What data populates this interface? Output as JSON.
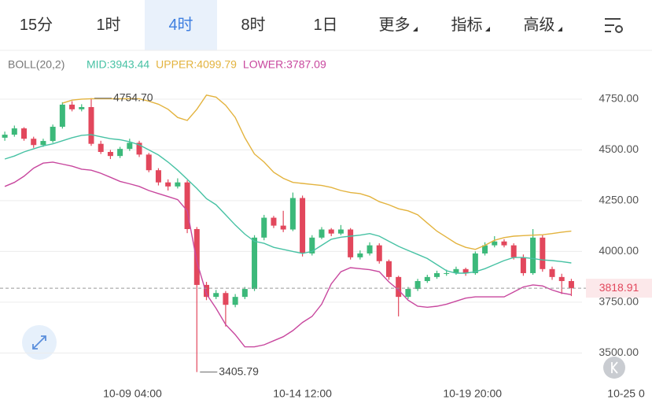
{
  "tabs": [
    "15分",
    "1时",
    "4时",
    "8时",
    "1日",
    "更多",
    "指标",
    "高级"
  ],
  "chart_data": {
    "type": "candlestick",
    "indicator": "BOLL(20,2)",
    "open": [
      4560,
      4575,
      4606,
      4555,
      4524,
      4544,
      4614,
      4723,
      4700,
      4711,
      4530,
      4490,
      4470,
      4505,
      4535,
      4477,
      4400,
      4340,
      4320,
      4340,
      4110,
      3835,
      3776,
      3795,
      3737,
      3776,
      3815,
      4068,
      4166,
      4127,
      4108,
      4263,
      3990,
      4068,
      4108,
      4088,
      4108,
      3971,
      3990,
      4030,
      3952,
      3874,
      3776,
      3815,
      3854,
      3874,
      3893,
      3893,
      3913,
      3893,
      3990,
      4030,
      4049,
      4030,
      3971,
      3893,
      4068,
      3913,
      3874,
      3854
    ],
    "high": [
      4590,
      4620,
      4612,
      4565,
      4555,
      4625,
      4735,
      4740,
      4725,
      4754.7,
      4545,
      4500,
      4515,
      4555,
      4545,
      4485,
      4410,
      4355,
      4360,
      4350,
      4120,
      3850,
      3810,
      3805,
      3790,
      3825,
      4080,
      4180,
      4175,
      4200,
      4290,
      4275,
      4080,
      4120,
      4115,
      4130,
      4115,
      4005,
      4045,
      4040,
      3960,
      3880,
      3825,
      3865,
      3885,
      3905,
      3910,
      3925,
      3920,
      4000,
      4045,
      4075,
      4060,
      4040,
      3985,
      4110,
      4080,
      3925,
      3890,
      3865
    ],
    "low": [
      4545,
      4565,
      4545,
      4510,
      4515,
      4535,
      4605,
      4690,
      4690,
      4520,
      4480,
      4455,
      4460,
      4495,
      4465,
      4390,
      4325,
      4300,
      4310,
      4090,
      3405.79,
      3760,
      3765,
      3630,
      3725,
      3765,
      3805,
      4055,
      4115,
      4095,
      4100,
      3975,
      3980,
      4060,
      4075,
      4080,
      3960,
      3960,
      3980,
      3940,
      3860,
      3680,
      3765,
      3805,
      3845,
      3865,
      3880,
      3885,
      3880,
      3885,
      3980,
      4020,
      4020,
      3960,
      3880,
      3885,
      3900,
      3860,
      3790,
      3780
    ],
    "close": [
      4575,
      4606,
      4555,
      4524,
      4544,
      4614,
      4723,
      4700,
      4711,
      4530,
      4490,
      4470,
      4505,
      4535,
      4477,
      4400,
      4340,
      4320,
      4340,
      4110,
      3835,
      3776,
      3795,
      3737,
      3776,
      3815,
      4068,
      4166,
      4127,
      4108,
      4263,
      3990,
      4068,
      4108,
      4088,
      4108,
      3971,
      3990,
      4030,
      3952,
      3874,
      3776,
      3815,
      3854,
      3874,
      3893,
      3893,
      3913,
      3893,
      3990,
      4030,
      4049,
      4030,
      3971,
      3893,
      4068,
      3913,
      3874,
      3854,
      3818.91
    ],
    "up_color": "#3cb97a",
    "down_color": "#e2475c",
    "series": [
      {
        "name": "MID:3943.44",
        "color": "#47c2a4",
        "values": [
          4455,
          4470,
          4490,
          4505,
          4520,
          4530,
          4545,
          4560,
          4572,
          4575,
          4565,
          4555,
          4550,
          4540,
          4525,
          4500,
          4475,
          4440,
          4400,
          4355,
          4310,
          4260,
          4230,
          4180,
          4130,
          4085,
          4050,
          4040,
          4020,
          4010,
          4000,
          3990,
          4000,
          4030,
          4060,
          4070,
          4075,
          4080,
          4088,
          4075,
          4050,
          4025,
          4005,
          3985,
          3965,
          3935,
          3905,
          3893,
          3893,
          3900,
          3915,
          3935,
          3955,
          3970,
          3970,
          3965,
          3958,
          3955,
          3950,
          3943.44
        ]
      },
      {
        "name": "UPPER:4099.79",
        "color": "#e3b33e",
        "values": [
          null,
          null,
          null,
          null,
          null,
          null,
          4730,
          4745,
          4750,
          4752,
          4752,
          4752,
          4752,
          4752,
          4752,
          4740,
          4725,
          4700,
          4660,
          4645,
          4700,
          4770,
          4760,
          4720,
          4660,
          4560,
          4480,
          4440,
          4390,
          4360,
          4340,
          4335,
          4330,
          4325,
          4315,
          4300,
          4290,
          4285,
          4270,
          4245,
          4230,
          4210,
          4200,
          4180,
          4140,
          4100,
          4070,
          4040,
          4020,
          4010,
          4030,
          4055,
          4068,
          4075,
          4078,
          4080,
          4082,
          4088,
          4095,
          4099.79
        ]
      },
      {
        "name": "LOWER:3787.09",
        "color": "#c8479e",
        "values": [
          4320,
          4340,
          4370,
          4410,
          4435,
          4440,
          4430,
          4420,
          4405,
          4400,
          4385,
          4365,
          4345,
          4333,
          4320,
          4300,
          4285,
          4270,
          4255,
          4200,
          3950,
          3790,
          3720,
          3640,
          3590,
          3530,
          3530,
          3540,
          3560,
          3580,
          3610,
          3650,
          3680,
          3740,
          3840,
          3900,
          3920,
          3915,
          3910,
          3900,
          3850,
          3810,
          3760,
          3730,
          3725,
          3730,
          3740,
          3755,
          3770,
          3776,
          3776,
          3776,
          3776,
          3800,
          3825,
          3835,
          3830,
          3810,
          3795,
          3787.09
        ]
      }
    ],
    "ylim": [
      3350,
      4870
    ],
    "yticks": [
      {
        "value": 3500,
        "label": "3500.00"
      },
      {
        "value": 3750,
        "label": "3750.00"
      },
      {
        "value": 4000,
        "label": "4000.00"
      },
      {
        "value": 4250,
        "label": "4250.00"
      },
      {
        "value": 4500,
        "label": "4500.00"
      },
      {
        "value": 4750,
        "label": "4750.00"
      }
    ],
    "xlim": [
      -0.5,
      67.4
    ],
    "xticks": [
      {
        "value": 13.3,
        "label": "10-09 04:00"
      },
      {
        "value": 31,
        "label": "10-14 12:00"
      },
      {
        "value": 48.7,
        "label": "10-19 20:00"
      },
      {
        "value": 64.7,
        "label": "10-25 0"
      }
    ],
    "grid": true,
    "annotations": [
      {
        "value": 4754.7,
        "label": "4754.70"
      },
      {
        "value": 3405.79,
        "label": "3405.79"
      }
    ],
    "current_price": 3818.91
  }
}
